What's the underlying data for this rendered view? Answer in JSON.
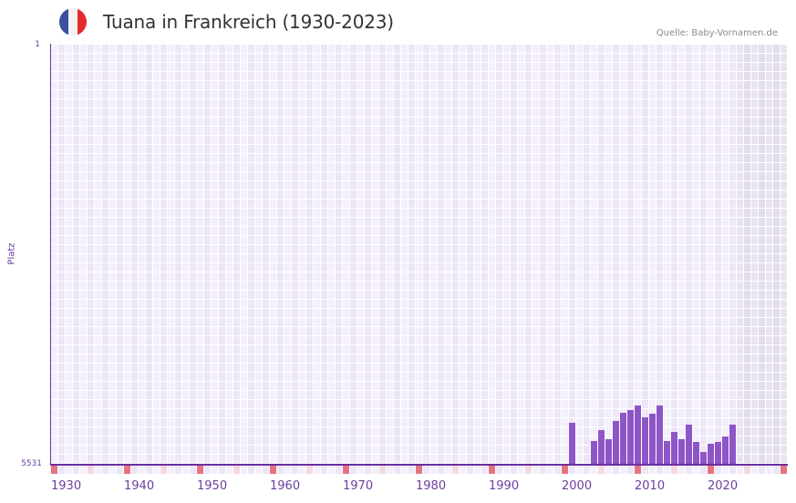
{
  "header": {
    "title": "Tuana in Frankreich (1930-2023)",
    "source": "Quelle: Baby-Vornamen.de",
    "flag": {
      "icon": "france-flag-icon",
      "colors": [
        "#3b4fa0",
        "#f2f2f2",
        "#e52a2f"
      ]
    }
  },
  "colors": {
    "bar": "#8e55c8",
    "axis": "#6b2fa0",
    "grid_light": "#f3effb",
    "grid_dark": "#ece6f7",
    "future_light": "#e9e5f0",
    "future_dark": "#e2dced",
    "decade_marker": "#e57480",
    "half_decade_marker": "#f5d8e0",
    "tick_text": "#6b3fa0"
  },
  "chart_data": {
    "type": "bar",
    "title": "Tuana in Frankreich (1930-2023)",
    "xlabel": "",
    "ylabel": "Platz",
    "y_inverted": true,
    "ylim": [
      1,
      5531
    ],
    "xlim": [
      1930,
      2030
    ],
    "x_tick_labels": [
      "1930",
      "1940",
      "1950",
      "1960",
      "1970",
      "1980",
      "1990",
      "2000",
      "2010",
      "2020"
    ],
    "y_tick_labels": [
      "1",
      "5531"
    ],
    "grid": true,
    "legend": null,
    "future_shaded_from": 2024,
    "categories": [
      2001,
      2004,
      2005,
      2006,
      2007,
      2008,
      2009,
      2010,
      2011,
      2012,
      2013,
      2014,
      2015,
      2016,
      2017,
      2018,
      2019,
      2020,
      2021,
      2022,
      2023
    ],
    "series": [
      {
        "name": "Platz",
        "values": [
          4979,
          5218,
          5074,
          5194,
          4955,
          4847,
          4811,
          4751,
          4907,
          4859,
          4751,
          5218,
          5098,
          5194,
          5003,
          5230,
          5362,
          5254,
          5230,
          5158,
          5003
        ]
      }
    ]
  },
  "axis": {
    "y_top": "1",
    "y_bottom": "5531",
    "y_label": "Platz",
    "x_labels": [
      "1930",
      "1940",
      "1950",
      "1960",
      "1970",
      "1980",
      "1990",
      "2000",
      "2010",
      "2020"
    ]
  }
}
